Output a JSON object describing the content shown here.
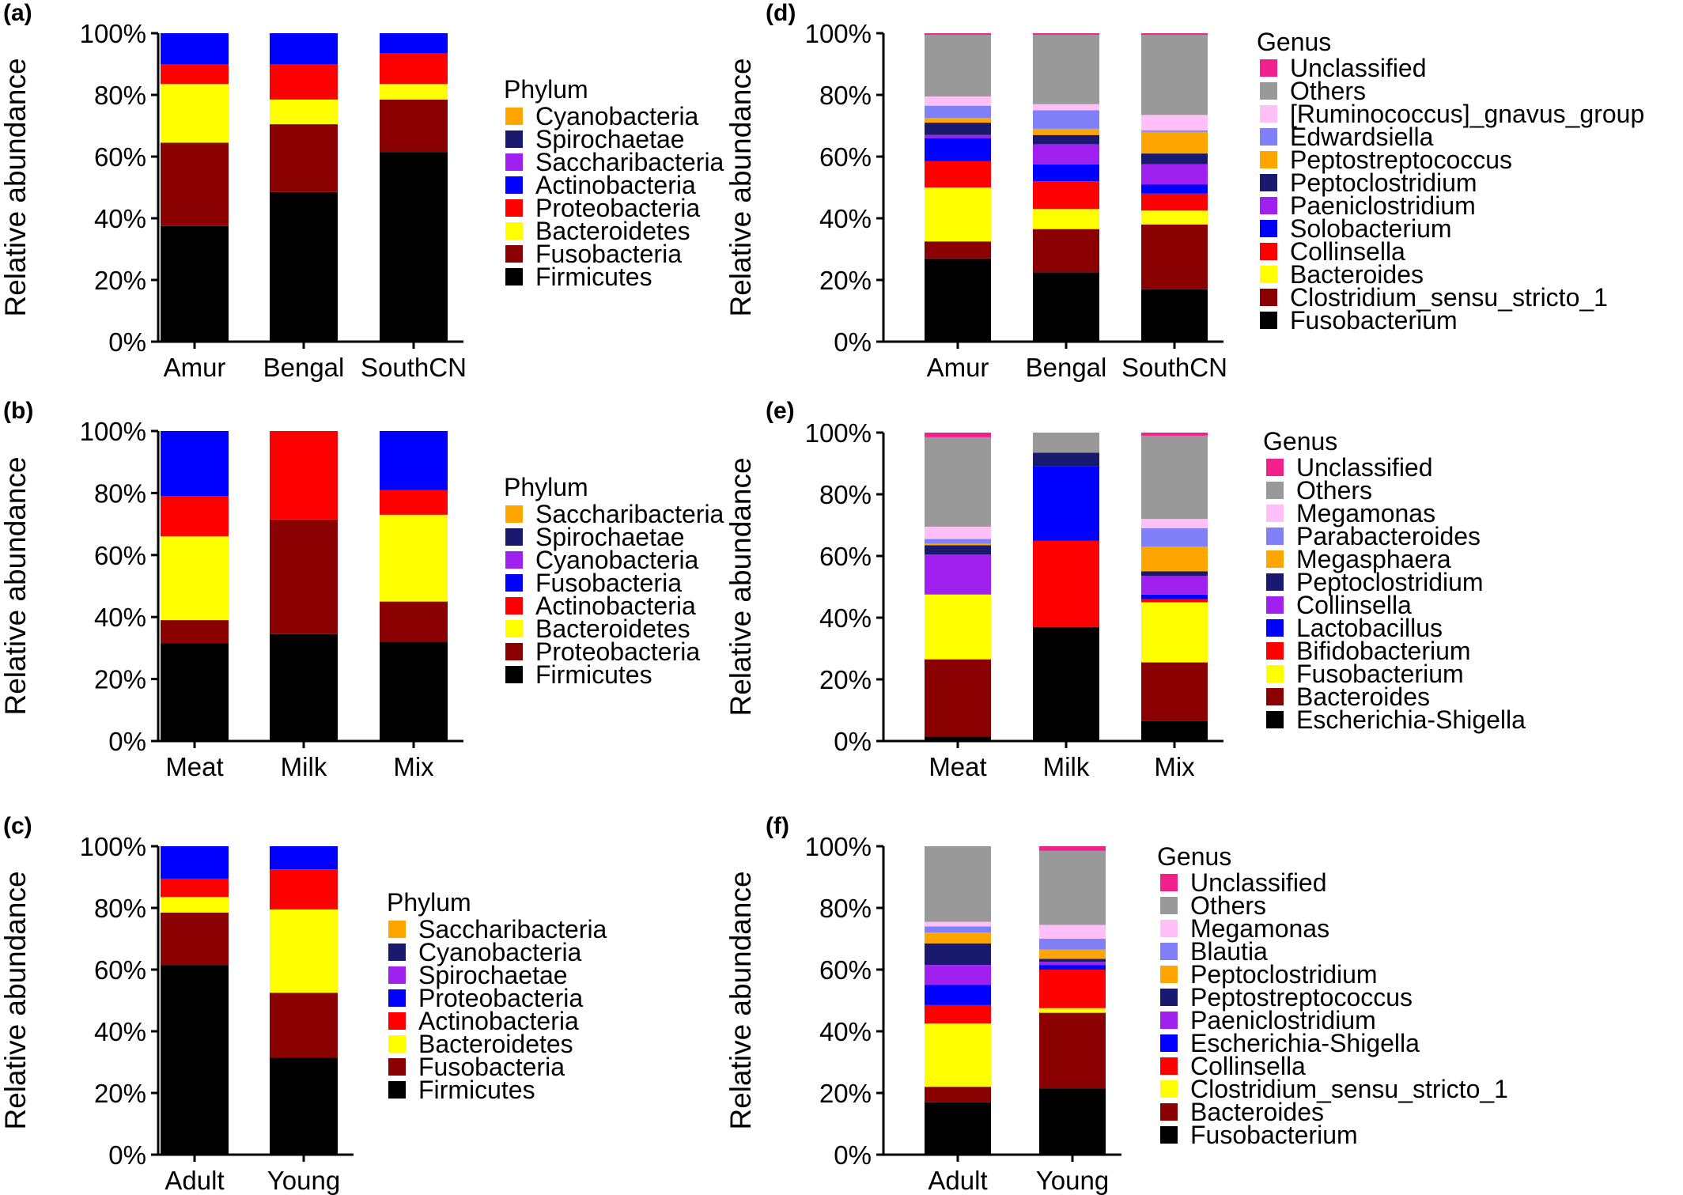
{
  "figure": {
    "chart_data": [
      {
        "panel": "(a)",
        "type": "bar",
        "stacked": true,
        "ylabel": "Relative abundance",
        "ylim": [
          0,
          100
        ],
        "yticks": [
          "0%",
          "20%",
          "40%",
          "60%",
          "80%",
          "100%"
        ],
        "categories": [
          "Amur",
          "Bengal",
          "SouthCN"
        ],
        "legend_title": "Phylum",
        "series": [
          {
            "name": "Firmicutes",
            "color": "#000000",
            "values": [
              37.5,
              48.5,
              61.5
            ]
          },
          {
            "name": "Fusobacteria",
            "color": "#8b0000",
            "values": [
              27,
              22,
              17
            ]
          },
          {
            "name": "Bacteroidetes",
            "color": "#ffff00",
            "values": [
              19,
              8,
              5
            ]
          },
          {
            "name": "Proteobacteria",
            "color": "#ff0000",
            "values": [
              6.5,
              11.5,
              10
            ]
          },
          {
            "name": "Actinobacteria",
            "color": "#0000ff",
            "values": [
              10,
              10,
              6.5
            ]
          },
          {
            "name": "Saccharibacteria",
            "color": "#a020f0",
            "values": [
              0,
              0,
              0
            ]
          },
          {
            "name": "Spirochaetae",
            "color": "#191970",
            "values": [
              0,
              0,
              0
            ]
          },
          {
            "name": "Cyanobacteria",
            "color": "#ffa500",
            "values": [
              0,
              0,
              0
            ]
          }
        ]
      },
      {
        "panel": "(b)",
        "type": "bar",
        "stacked": true,
        "ylabel": "Relative abundance",
        "ylim": [
          0,
          100
        ],
        "yticks": [
          "0%",
          "20%",
          "40%",
          "60%",
          "80%",
          "100%"
        ],
        "categories": [
          "Meat",
          "Milk",
          "Mix"
        ],
        "legend_title": "Phylum",
        "series": [
          {
            "name": "Firmicutes",
            "color": "#000000",
            "values": [
              31.5,
              34.5,
              32
            ]
          },
          {
            "name": "Proteobacteria",
            "color": "#8b0000",
            "values": [
              7.5,
              37,
              13
            ]
          },
          {
            "name": "Bacteroidetes",
            "color": "#ffff00",
            "values": [
              27,
              0,
              28
            ]
          },
          {
            "name": "Actinobacteria",
            "color": "#ff0000",
            "values": [
              13,
              28.5,
              8
            ]
          },
          {
            "name": "Fusobacteria",
            "color": "#0000ff",
            "values": [
              21,
              0,
              19
            ]
          },
          {
            "name": "Cyanobacteria",
            "color": "#a020f0",
            "values": [
              0,
              0,
              0
            ]
          },
          {
            "name": "Spirochaetae",
            "color": "#191970",
            "values": [
              0,
              0,
              0
            ]
          },
          {
            "name": "Saccharibacteria",
            "color": "#ffa500",
            "values": [
              0,
              0,
              0
            ]
          }
        ]
      },
      {
        "panel": "(c)",
        "type": "bar",
        "stacked": true,
        "ylabel": "Relative abundance",
        "ylim": [
          0,
          100
        ],
        "yticks": [
          "0%",
          "20%",
          "40%",
          "60%",
          "80%",
          "100%"
        ],
        "categories": [
          "Adult",
          "Young"
        ],
        "legend_title": "Phylum",
        "series": [
          {
            "name": "Firmicutes",
            "color": "#000000",
            "values": [
              61.5,
              31.5
            ]
          },
          {
            "name": "Fusobacteria",
            "color": "#8b0000",
            "values": [
              17,
              21
            ]
          },
          {
            "name": "Bacteroidetes",
            "color": "#ffff00",
            "values": [
              5,
              27
            ]
          },
          {
            "name": "Actinobacteria",
            "color": "#ff0000",
            "values": [
              6,
              13
            ]
          },
          {
            "name": "Proteobacteria",
            "color": "#0000ff",
            "values": [
              10.5,
              7.5
            ]
          },
          {
            "name": "Spirochaetae",
            "color": "#a020f0",
            "values": [
              0,
              0
            ]
          },
          {
            "name": "Cyanobacteria",
            "color": "#191970",
            "values": [
              0,
              0
            ]
          },
          {
            "name": "Saccharibacteria",
            "color": "#ffa500",
            "values": [
              0,
              0
            ]
          }
        ]
      },
      {
        "panel": "(d)",
        "type": "bar",
        "stacked": true,
        "ylabel": "Relative abundance",
        "ylim": [
          0,
          100
        ],
        "yticks": [
          "0%",
          "20%",
          "40%",
          "60%",
          "80%",
          "100%"
        ],
        "categories": [
          "Amur",
          "Bengal",
          "SouthCN"
        ],
        "legend_title": "Genus",
        "series": [
          {
            "name": "Fusobacterium",
            "color": "#000000",
            "values": [
              27,
              22.5,
              17
            ]
          },
          {
            "name": "Clostridium_sensu_stricto_1",
            "color": "#8b0000",
            "values": [
              5.5,
              14,
              21
            ]
          },
          {
            "name": "Bacteroides",
            "color": "#ffff00",
            "values": [
              17.5,
              6.5,
              4.5
            ]
          },
          {
            "name": "Collinsella",
            "color": "#ff0000",
            "values": [
              8.5,
              9,
              5.5
            ]
          },
          {
            "name": "Solobacterium",
            "color": "#0000ff",
            "values": [
              7.5,
              5.5,
              3
            ]
          },
          {
            "name": "Paeniclostridium",
            "color": "#a020f0",
            "values": [
              1,
              6.5,
              6.5
            ]
          },
          {
            "name": "Peptoclostridium",
            "color": "#191970",
            "values": [
              4,
              3,
              3.5
            ]
          },
          {
            "name": "Peptostreptococcus",
            "color": "#ffa500",
            "values": [
              1.5,
              2,
              7
            ]
          },
          {
            "name": "Edwardsiella",
            "color": "#8080f8",
            "values": [
              4,
              6,
              0.5
            ]
          },
          {
            "name": "[Ruminococcus]_gnavus_group",
            "color": "#ffc0f8",
            "values": [
              3,
              2,
              5
            ]
          },
          {
            "name": "Others",
            "color": "#999999",
            "values": [
              20,
              22.5,
              26
            ]
          },
          {
            "name": "Unclassified",
            "color": "#f0208c",
            "values": [
              0.5,
              0.5,
              0.5
            ]
          }
        ]
      },
      {
        "panel": "(e)",
        "type": "bar",
        "stacked": true,
        "ylabel": "Relative abundance",
        "ylim": [
          0,
          100
        ],
        "yticks": [
          "0%",
          "20%",
          "40%",
          "60%",
          "80%",
          "100%"
        ],
        "categories": [
          "Meat",
          "Milk",
          "Mix"
        ],
        "legend_title": "Genus",
        "series": [
          {
            "name": "Escherichia-Shigella",
            "color": "#000000",
            "values": [
              1.5,
              37,
              6.5
            ]
          },
          {
            "name": "Bacteroides",
            "color": "#8b0000",
            "values": [
              25,
              0,
              19
            ]
          },
          {
            "name": "Fusobacterium",
            "color": "#ffff00",
            "values": [
              21,
              0,
              19.5
            ]
          },
          {
            "name": "Bifidobacterium",
            "color": "#ff0000",
            "values": [
              0,
              28,
              1
            ]
          },
          {
            "name": "Lactobacillus",
            "color": "#0000ff",
            "values": [
              0,
              24,
              1.5
            ]
          },
          {
            "name": "Collinsella",
            "color": "#a020f0",
            "values": [
              13,
              0,
              6
            ]
          },
          {
            "name": "Peptoclostridium",
            "color": "#191970",
            "values": [
              3,
              4.5,
              1.5
            ]
          },
          {
            "name": "Megasphaera",
            "color": "#ffa500",
            "values": [
              0.5,
              0,
              8
            ]
          },
          {
            "name": "Parabacteroides",
            "color": "#8080f8",
            "values": [
              1.5,
              0,
              6
            ]
          },
          {
            "name": "Megamonas",
            "color": "#ffc0f8",
            "values": [
              4,
              0,
              3
            ]
          },
          {
            "name": "Others",
            "color": "#999999",
            "values": [
              29,
              6.5,
              27
            ]
          },
          {
            "name": "Unclassified",
            "color": "#f0208c",
            "values": [
              1.5,
              0,
              1
            ]
          }
        ]
      },
      {
        "panel": "(f)",
        "type": "bar",
        "stacked": true,
        "ylabel": "Relative abundance",
        "ylim": [
          0,
          100
        ],
        "yticks": [
          "0%",
          "20%",
          "40%",
          "60%",
          "80%",
          "100%"
        ],
        "categories": [
          "Adult",
          "Young"
        ],
        "legend_title": "Genus",
        "series": [
          {
            "name": "Fusobacterium",
            "color": "#000000",
            "values": [
              17,
              21.5
            ]
          },
          {
            "name": "Bacteroides",
            "color": "#8b0000",
            "values": [
              5,
              24.5
            ]
          },
          {
            "name": "Clostridium_sensu_stricto_1",
            "color": "#ffff00",
            "values": [
              20.5,
              1.5
            ]
          },
          {
            "name": "Collinsella",
            "color": "#ff0000",
            "values": [
              6,
              12.5
            ]
          },
          {
            "name": "Escherichia-Shigella",
            "color": "#0000ff",
            "values": [
              6.5,
              1.5
            ]
          },
          {
            "name": "Paeniclostridium",
            "color": "#a020f0",
            "values": [
              6.5,
              1
            ]
          },
          {
            "name": "Peptostreptococcus",
            "color": "#191970",
            "values": [
              7,
              1
            ]
          },
          {
            "name": "Peptoclostridium",
            "color": "#ffa500",
            "values": [
              3.5,
              3
            ]
          },
          {
            "name": "Blautia",
            "color": "#8080f8",
            "values": [
              2,
              3.5
            ]
          },
          {
            "name": "Megamonas",
            "color": "#ffc0f8",
            "values": [
              1.5,
              4.5
            ]
          },
          {
            "name": "Others",
            "color": "#999999",
            "values": [
              24.5,
              24
            ]
          },
          {
            "name": "Unclassified",
            "color": "#f0208c",
            "values": [
              0,
              1.5
            ]
          }
        ]
      }
    ]
  }
}
